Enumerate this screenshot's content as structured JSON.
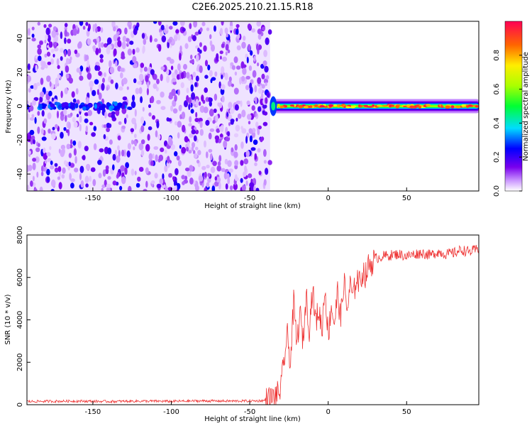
{
  "title": "C2E6.2025.210.21.15.R18",
  "chart_data": [
    {
      "type": "heatmap",
      "xlabel": "Height of straight line (km)",
      "ylabel": "Frequency (Hz)",
      "xlim": [
        -192,
        96
      ],
      "ylim": [
        -50,
        50
      ],
      "xticks": [
        -150,
        -100,
        -50,
        0,
        50
      ],
      "yticks": [
        -40,
        -20,
        0,
        20,
        40
      ],
      "colorbar": {
        "label": "Normalized spectral amplitude",
        "range": [
          0,
          1
        ],
        "ticks": [
          0.0,
          0.2,
          0.4,
          0.6,
          0.8
        ]
      },
      "regions": [
        {
          "name": "noise",
          "x_range": [
            -192,
            -37
          ],
          "freq_range": [
            -50,
            50
          ],
          "amplitude": [
            0.05,
            0.2
          ]
        },
        {
          "name": "signal",
          "x_range": [
            -37,
            96
          ],
          "freq_center": 0,
          "amplitude": [
            0.3,
            1.0
          ]
        }
      ],
      "grid": false
    },
    {
      "type": "line",
      "xlabel": "Height of straight line (km)",
      "ylabel": "SNR (10 * v/v)",
      "xlim": [
        -192,
        96
      ],
      "ylim": [
        0,
        8000
      ],
      "xticks": [
        -150,
        -100,
        -50,
        0,
        50
      ],
      "yticks": [
        0,
        2000,
        4000,
        6000,
        8000
      ],
      "series": [
        {
          "color": "#ee3333",
          "x": [
            -192,
            -180,
            -160,
            -140,
            -120,
            -100,
            -80,
            -60,
            -45,
            -40,
            -35,
            -32,
            -30,
            -28,
            -26,
            -24,
            -22,
            -20,
            -18,
            -16,
            -14,
            -12,
            -10,
            -8,
            -6,
            -4,
            -2,
            0,
            2,
            4,
            6,
            8,
            10,
            12,
            14,
            16,
            18,
            20,
            22,
            24,
            26,
            28,
            30,
            35,
            40,
            45,
            50,
            55,
            60,
            65,
            70,
            75,
            80,
            85,
            90,
            96
          ],
          "y": [
            150,
            160,
            170,
            150,
            170,
            160,
            180,
            170,
            180,
            200,
            300,
            500,
            800,
            2200,
            3200,
            2000,
            4800,
            2800,
            4300,
            3000,
            5200,
            3600,
            5500,
            3900,
            4500,
            3500,
            5600,
            3200,
            4700,
            3800,
            5300,
            4000,
            5900,
            4400,
            5600,
            5000,
            6100,
            5700,
            6300,
            6100,
            6600,
            6700,
            6900,
            7000,
            7050,
            7100,
            7000,
            7100,
            7150,
            7050,
            7200,
            7100,
            7150,
            7300,
            7200,
            7350
          ]
        }
      ],
      "grid": false
    }
  ]
}
